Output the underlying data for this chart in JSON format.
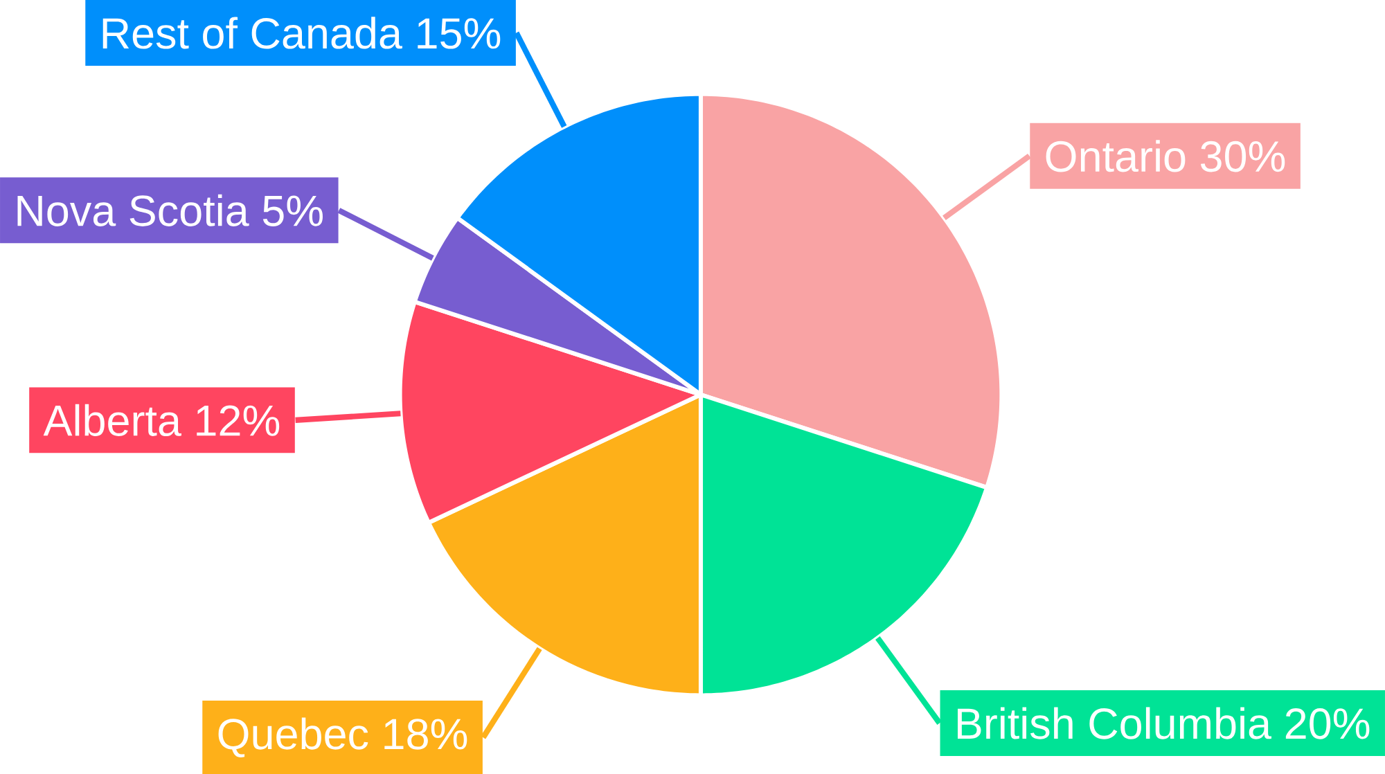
{
  "chart_data": {
    "type": "pie",
    "categories": [
      "Ontario",
      "British Columbia",
      "Quebec",
      "Alberta",
      "Nova Scotia",
      "Rest of Canada"
    ],
    "values": [
      30,
      20,
      18,
      12,
      5,
      15
    ],
    "value_labels": [
      "30%",
      "20%",
      "18%",
      "12%",
      "5%",
      "15%"
    ],
    "colors": [
      "#f9a3a4",
      "#00e396",
      "#feb019",
      "#ff4560",
      "#775dd0",
      "#008ffb"
    ]
  }
}
